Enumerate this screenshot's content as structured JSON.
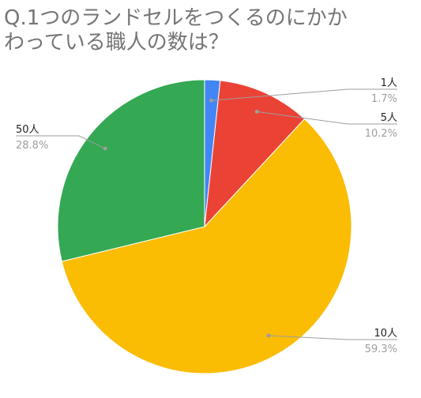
{
  "chart_data": {
    "type": "pie",
    "title_lines": [
      "Q.1つのランドセルをつくるのにかか",
      "わっている職人の数は？"
    ],
    "slices": [
      {
        "label": "1人",
        "value": 1.7,
        "pct_label": "1.7%",
        "color": "#4285F4"
      },
      {
        "label": "5人",
        "value": 10.2,
        "pct_label": "10.2%",
        "color": "#EA4335"
      },
      {
        "label": "10人",
        "value": 59.3,
        "pct_label": "59.3%",
        "color": "#FBBC04"
      },
      {
        "label": "50人",
        "value": 28.8,
        "pct_label": "28.8%",
        "color": "#34A853"
      }
    ],
    "legend": "none",
    "start_angle": "12 o'clock, clockwise"
  }
}
